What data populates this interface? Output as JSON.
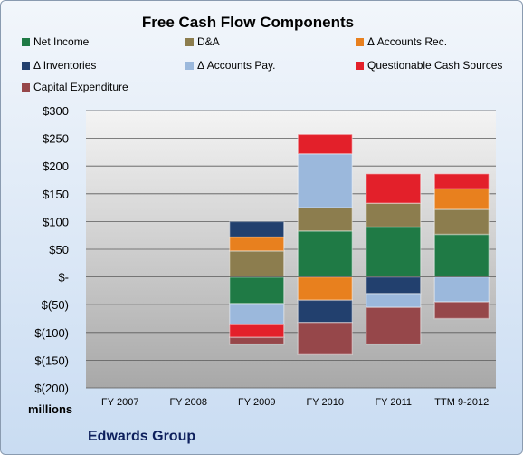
{
  "chart_data": {
    "type": "bar",
    "stacked": true,
    "title": "Free Cash Flow Components",
    "units_label": "millions",
    "company": "Edwards Group",
    "categories": [
      "FY 2007",
      "FY 2008",
      "FY 2009",
      "FY 2010",
      "FY 2011",
      "TTM 9-2012"
    ],
    "y_ticks": [
      "$300",
      "$250",
      "$200",
      "$150",
      "$100",
      "$50",
      "$-",
      "$(50)",
      "$(100)",
      "$(150)",
      "$(200)"
    ],
    "ylim": [
      -200,
      300
    ],
    "grid": true,
    "legend": "top",
    "series": [
      {
        "name": "Net Income",
        "color": "#1f7a45",
        "values": [
          0,
          0,
          -48,
          83,
          90,
          77
        ]
      },
      {
        "name": "D&A",
        "color": "#8c7d4e",
        "values": [
          0,
          0,
          47,
          42,
          43,
          45
        ]
      },
      {
        "name": "Δ Accounts Rec.",
        "color": "#e8801e",
        "values": [
          0,
          0,
          25,
          -42,
          0,
          37
        ]
      },
      {
        "name": "Δ Inventories",
        "color": "#22406e",
        "values": [
          0,
          0,
          28,
          -40,
          -30,
          0
        ]
      },
      {
        "name": "Δ Accounts Pay.",
        "color": "#9bb8dc",
        "values": [
          0,
          0,
          -38,
          97,
          -25,
          -45
        ]
      },
      {
        "name": "Questionable Cash Sources",
        "color": "#e3202a",
        "values": [
          0,
          0,
          -23,
          35,
          53,
          27
        ]
      },
      {
        "name": "Capital Expenditure",
        "color": "#96474a",
        "values": [
          0,
          0,
          -12,
          -58,
          -66,
          -30
        ]
      }
    ]
  }
}
